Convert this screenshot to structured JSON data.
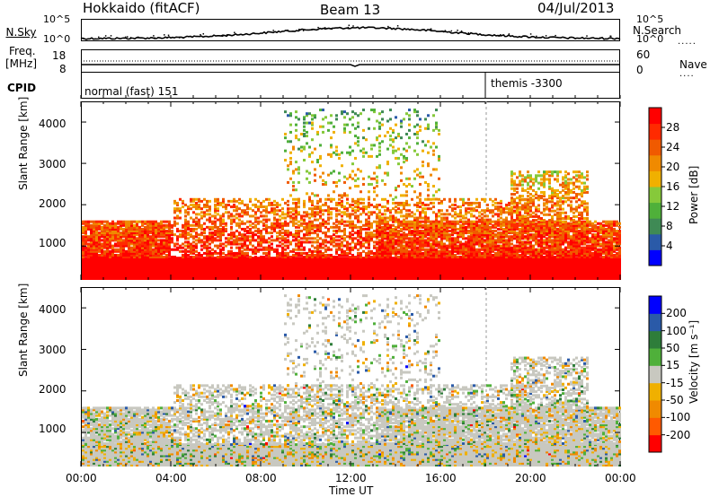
{
  "header": {
    "radar": "Hokkaido (fitACF)",
    "beam": "Beam 13",
    "date": "04/Jul/2013"
  },
  "top_panels": {
    "nsky_label": "N.Sky",
    "nsearch_label": "N.Search",
    "nsky_ticks": [
      "10^5",
      "10^0"
    ],
    "nsky_right_ticks": [
      "10^5",
      "10^0"
    ],
    "freq_label_1": "Freq.",
    "freq_label_2": "[MHz]",
    "freq_ticks": [
      "18",
      "8"
    ],
    "nave_ticks": [
      "60",
      "0"
    ],
    "nave_label": "Nave",
    "cpid_label": "CPID",
    "cpid_mode_1": "normal (fast) 151",
    "cpid_mode_2": "themis -3300"
  },
  "axes": {
    "ylabel": "Slant Range [km]",
    "yticks": [
      "1000",
      "2000",
      "3000",
      "4000"
    ],
    "xticks": [
      "00:00",
      "04:00",
      "08:00",
      "12:00",
      "16:00",
      "20:00",
      "00:00"
    ],
    "xlabel": "Time UT"
  },
  "colorbars": {
    "power": {
      "label": "Power [dB]",
      "ticks": [
        "4",
        "8",
        "12",
        "16",
        "20",
        "24",
        "28"
      ]
    },
    "velocity": {
      "label": "Velocity [m s⁻¹]",
      "ticks": [
        "200",
        "100",
        "50",
        "15",
        "-15",
        "-50",
        "-100",
        "-200"
      ]
    }
  },
  "chart_data": [
    {
      "type": "heatmap",
      "title": "Power",
      "x_range_hours": [
        0,
        24
      ],
      "y_range_km": [
        180,
        4500
      ],
      "colorbar_label": "Power [dB]",
      "colorbar_range": [
        0,
        30
      ],
      "colors": [
        "#0000ff",
        "#2a5aa8",
        "#3f8a55",
        "#4fb03a",
        "#86c93a",
        "#f0b000",
        "#f08a00",
        "#f05a00",
        "#ff2a00",
        "#ff0000"
      ]
    },
    {
      "type": "heatmap",
      "title": "Velocity",
      "x_range_hours": [
        0,
        24
      ],
      "y_range_km": [
        180,
        4500
      ],
      "colorbar_label": "Velocity [m s⁻¹]",
      "colorbar_range": [
        -250,
        250
      ],
      "colors": [
        "#ff0000",
        "#ff5a00",
        "#f08a00",
        "#f0b000",
        "#c8c8c0",
        "#4fb03a",
        "#2e7d3a",
        "#2a5aa8",
        "#0000ff"
      ]
    }
  ]
}
